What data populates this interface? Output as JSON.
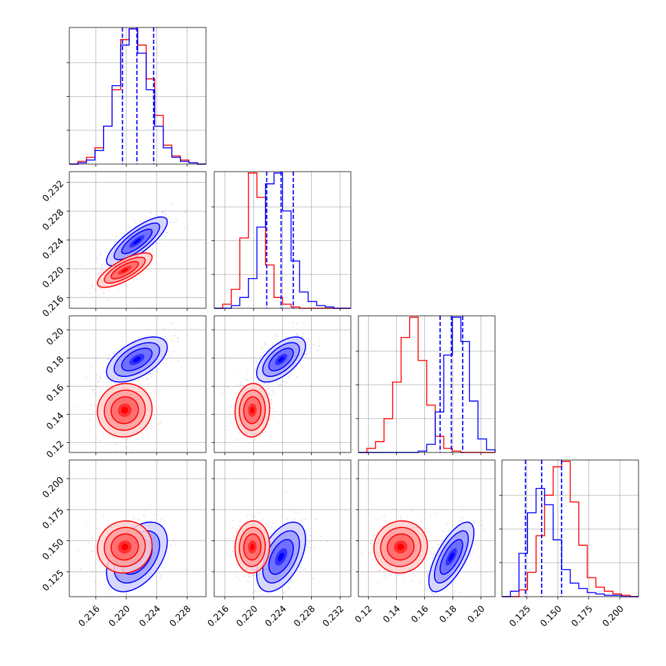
{
  "colors": {
    "red": "#ff0000",
    "blue": "#0000ff",
    "grid": "#b0b0b0"
  },
  "chart_data": {
    "type": "corner",
    "title": "",
    "grid": true,
    "parameters": [
      {
        "name": "",
        "range": [
          0.2125,
          0.2305
        ],
        "ticks": [
          0.216,
          0.22,
          0.224,
          0.228
        ],
        "tick_labels": [
          "0.216",
          "0.220",
          "0.224",
          "0.228"
        ]
      },
      {
        "name": "",
        "range": [
          0.2145,
          0.2335
        ],
        "ticks": [
          0.216,
          0.22,
          0.224,
          0.228,
          0.232
        ],
        "tick_labels": [
          "0.216",
          "0.220",
          "0.224",
          "0.228",
          "0.232"
        ]
      },
      {
        "name": "",
        "range": [
          0.113,
          0.21
        ],
        "ticks": [
          0.12,
          0.14,
          0.16,
          0.18,
          0.2
        ],
        "tick_labels": [
          "0.12",
          "0.14",
          "0.16",
          "0.18",
          "0.20"
        ]
      },
      {
        "name": "",
        "range": [
          0.105,
          0.215
        ],
        "ticks": [
          0.125,
          0.15,
          0.175,
          0.2
        ],
        "tick_labels": [
          "0.125",
          "0.150",
          "0.175",
          "0.200"
        ]
      }
    ],
    "series": [
      {
        "name": "",
        "color": "#ff0000",
        "means": [
          0.2198,
          0.2198,
          0.143,
          0.145
        ],
        "sigmas": [
          0.0018,
          0.0012,
          0.0095,
          0.0105
        ],
        "correlations": [
          [
            1.0,
            0.75,
            0.05,
            0.05
          ],
          [
            0.75,
            1.0,
            0.05,
            0.05
          ],
          [
            0.05,
            0.05,
            1.0,
            0.05
          ],
          [
            0.05,
            0.05,
            0.05,
            1.0
          ]
        ],
        "histograms": [
          [
            0,
            2,
            5,
            12,
            28,
            55,
            92,
            100,
            88,
            63,
            36,
            14,
            6,
            3,
            1,
            0
          ],
          [
            0,
            3,
            14,
            52,
            100,
            82,
            32,
            8,
            3,
            1,
            0,
            0,
            0,
            0,
            0,
            0
          ],
          [
            0,
            3,
            8,
            25,
            52,
            85,
            100,
            68,
            35,
            12,
            3,
            1,
            0,
            0,
            0,
            0
          ],
          [
            0,
            0,
            5,
            18,
            45,
            75,
            96,
            100,
            70,
            38,
            14,
            7,
            4,
            2,
            1,
            0
          ]
        ]
      },
      {
        "name": "",
        "color": "#0000ff",
        "means": [
          0.2214,
          0.2238,
          0.179,
          0.137
        ],
        "sigmas": [
          0.002,
          0.0017,
          0.008,
          0.014
        ],
        "correlations": [
          [
            1.0,
            0.8,
            0.55,
            0.45
          ],
          [
            0.8,
            1.0,
            0.6,
            0.5
          ],
          [
            0.55,
            0.6,
            1.0,
            0.7
          ],
          [
            0.45,
            0.5,
            0.7,
            1.0
          ]
        ],
        "quantiles": [
          [
            0.2195,
            0.2214,
            0.2236
          ],
          [
            0.2218,
            0.2238,
            0.2255
          ],
          [
            0.171,
            0.179,
            0.187
          ],
          [
            0.124,
            0.137,
            0.153
          ]
        ],
        "histograms": [
          [
            0,
            1,
            3,
            10,
            28,
            58,
            88,
            100,
            82,
            55,
            28,
            12,
            5,
            2,
            1,
            0
          ],
          [
            0,
            0,
            2,
            8,
            22,
            60,
            92,
            100,
            72,
            35,
            12,
            5,
            2,
            1,
            0,
            0
          ],
          [
            0,
            0,
            0,
            0,
            0,
            0,
            0,
            1,
            6,
            30,
            72,
            100,
            82,
            38,
            10,
            2
          ],
          [
            0,
            4,
            32,
            62,
            80,
            68,
            42,
            20,
            10,
            6,
            3,
            2,
            1,
            1,
            0,
            0
          ]
        ]
      }
    ],
    "contour_levels": [
      0.5,
      1.0,
      1.5,
      2.0
    ]
  }
}
